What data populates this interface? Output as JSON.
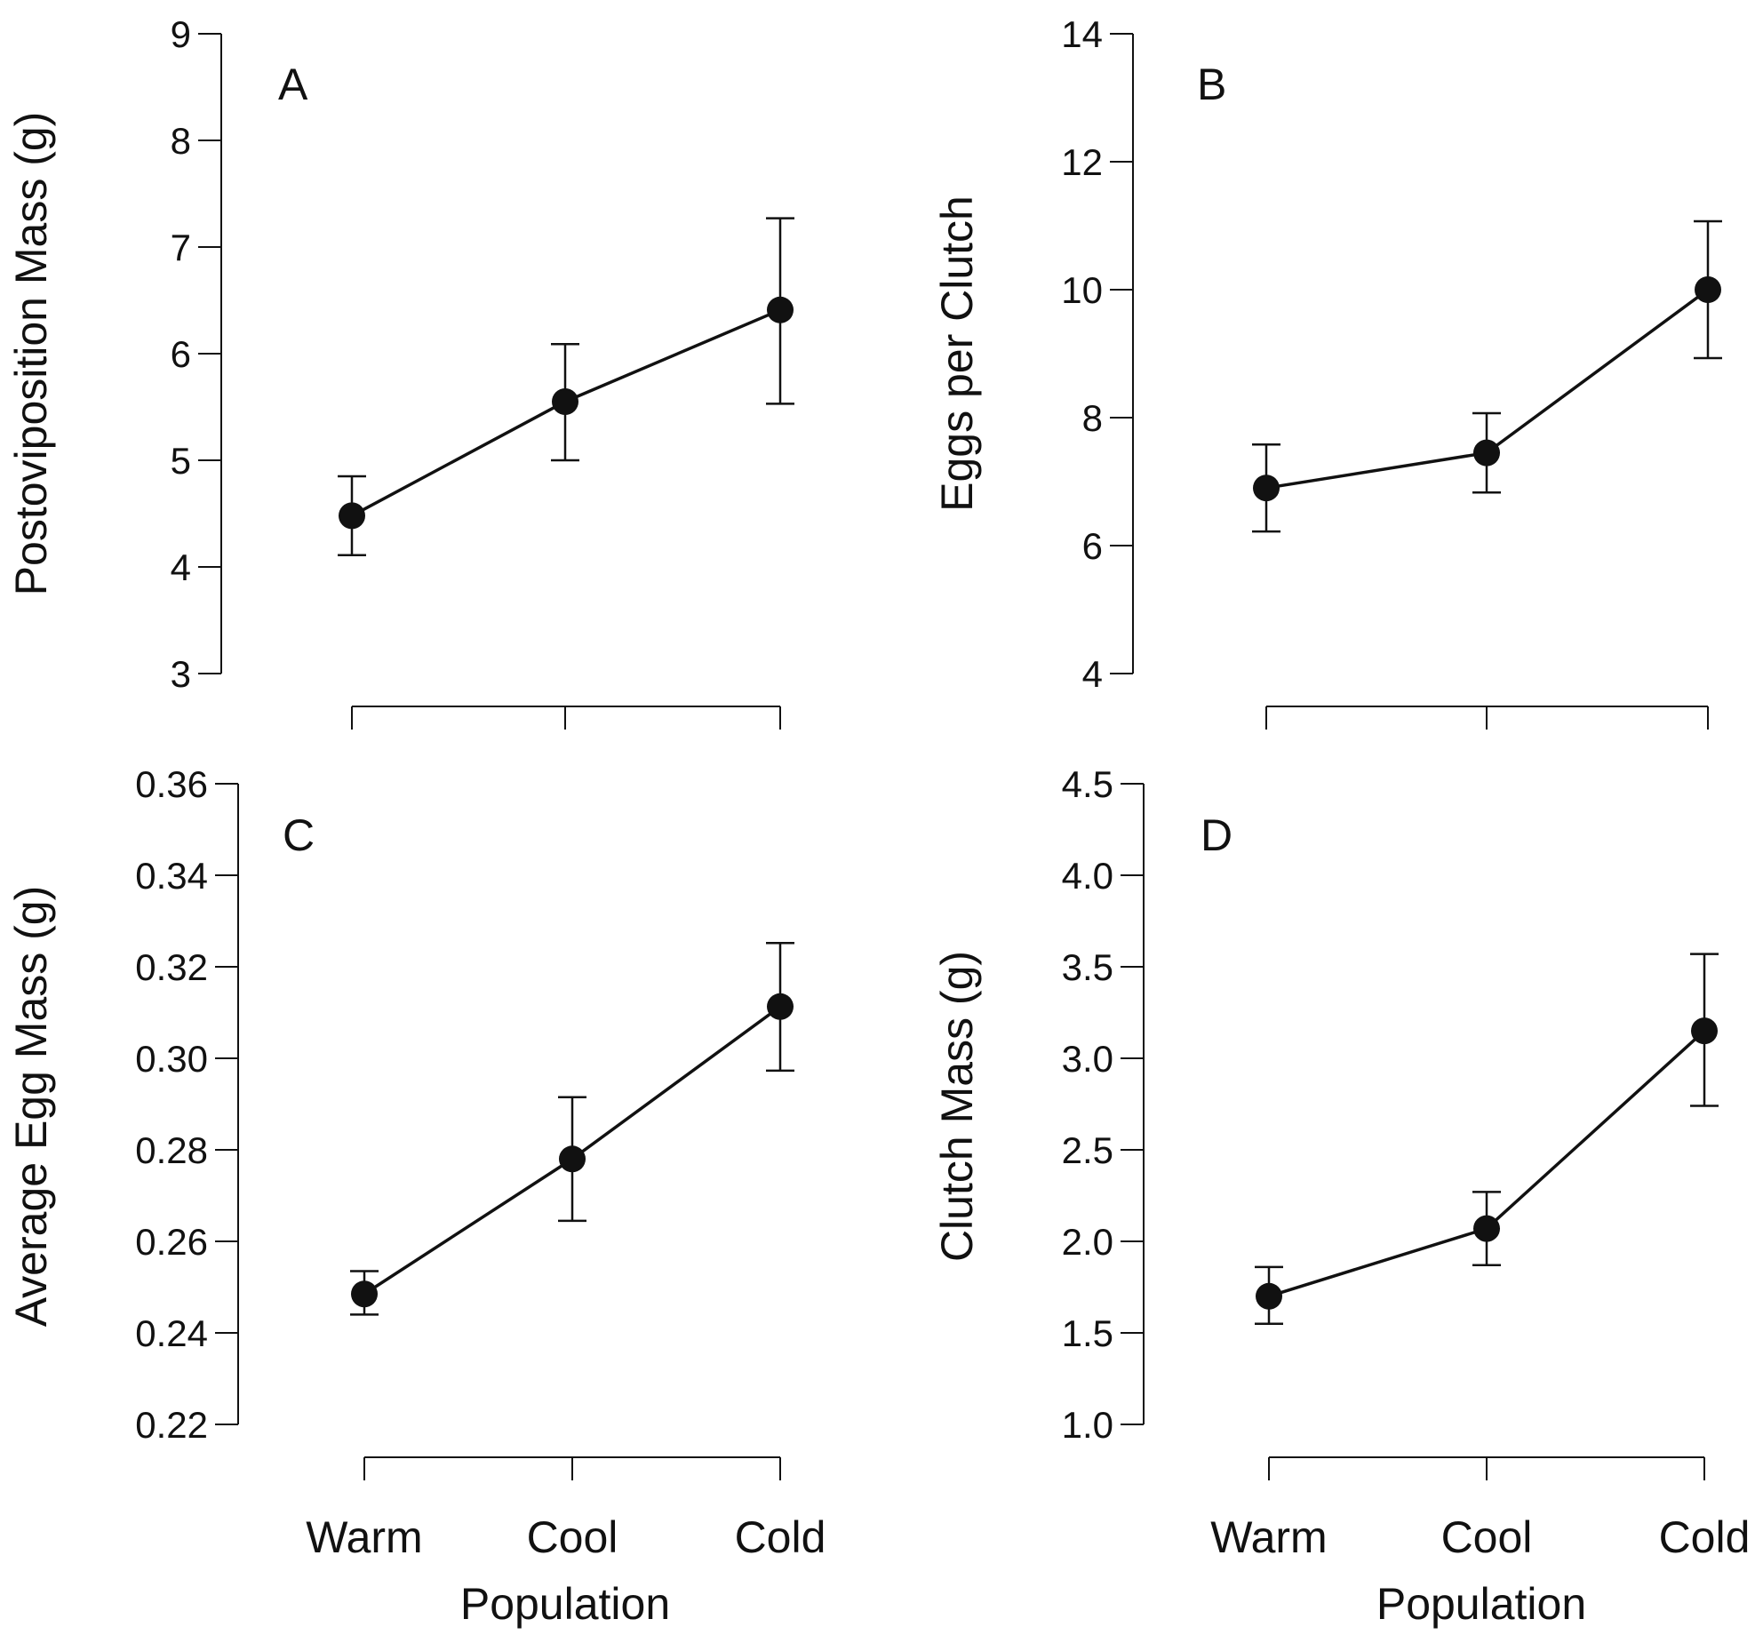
{
  "colors": {
    "ink": "#111111",
    "background": "#ffffff"
  },
  "chart_data": [
    {
      "panel_label": "A",
      "type": "line",
      "categories": [
        "Warm",
        "Cool",
        "Cold"
      ],
      "values": [
        4.48,
        5.55,
        6.41
      ],
      "error_low": [
        4.11,
        5.0,
        5.53
      ],
      "error_high": [
        4.85,
        6.09,
        7.27
      ],
      "ylabel": "Postoviposition Mass (g)",
      "xlabel": "",
      "ylim": [
        3,
        9
      ],
      "yticks": [
        "3",
        "4",
        "5",
        "6",
        "7",
        "8",
        "9"
      ],
      "show_category_labels": false
    },
    {
      "panel_label": "B",
      "type": "line",
      "categories": [
        "Warm",
        "Cool",
        "Cold"
      ],
      "values": [
        6.9,
        7.45,
        10.0
      ],
      "error_low": [
        6.22,
        6.83,
        8.93
      ],
      "error_high": [
        7.58,
        8.07,
        11.07
      ],
      "ylabel": "Eggs  per Clutch",
      "xlabel": "",
      "ylim": [
        4,
        14
      ],
      "yticks": [
        "4",
        "6",
        "8",
        "10",
        "12",
        "14"
      ],
      "show_category_labels": false
    },
    {
      "panel_label": "C",
      "type": "line",
      "categories": [
        "Warm",
        "Cool",
        "Cold"
      ],
      "values": [
        0.2485,
        0.278,
        0.3113
      ],
      "error_low": [
        0.244,
        0.2645,
        0.2973
      ],
      "error_high": [
        0.2535,
        0.2915,
        0.3252
      ],
      "ylabel": "Average Egg Mass (g)",
      "xlabel": "Population",
      "ylim": [
        0.22,
        0.36
      ],
      "yticks": [
        "0.22",
        "0.24",
        "0.26",
        "0.28",
        "0.30",
        "0.32",
        "0.34",
        "0.36"
      ],
      "show_category_labels": true
    },
    {
      "panel_label": "D",
      "type": "line",
      "categories": [
        "Warm",
        "Cool",
        "Cold"
      ],
      "values": [
        1.7,
        2.07,
        3.15
      ],
      "error_low": [
        1.55,
        1.87,
        2.74
      ],
      "error_high": [
        1.86,
        2.27,
        3.57
      ],
      "ylabel": "Clutch Mass (g)",
      "xlabel": "Population",
      "ylim": [
        1.0,
        4.5
      ],
      "yticks": [
        "1.0",
        "1.5",
        "2.0",
        "2.5",
        "3.0",
        "3.5",
        "4.0",
        "4.5"
      ],
      "show_category_labels": true
    }
  ]
}
